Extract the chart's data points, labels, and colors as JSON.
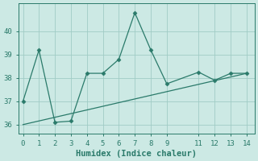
{
  "xlabel": "Humidex (Indice chaleur)",
  "x_data": [
    0,
    1,
    2,
    3,
    4,
    5,
    6,
    7,
    8,
    9,
    11,
    12,
    13,
    14
  ],
  "y_main": [
    37.0,
    39.2,
    36.1,
    36.15,
    38.2,
    38.2,
    38.8,
    40.8,
    39.2,
    37.75,
    38.25,
    37.9,
    38.2,
    38.2
  ],
  "y_trend_x": [
    0,
    14
  ],
  "y_trend_y": [
    36.0,
    38.2
  ],
  "ylim": [
    35.6,
    41.2
  ],
  "yticks": [
    36,
    37,
    38,
    39,
    40
  ],
  "xticks": [
    0,
    1,
    2,
    3,
    4,
    5,
    6,
    7,
    8,
    9,
    11,
    12,
    13,
    14
  ],
  "xlim": [
    -0.3,
    14.5
  ],
  "line_color": "#2a7a6a",
  "bg_color": "#cce9e4",
  "grid_color": "#a0ccc5",
  "marker": "D",
  "marker_size": 2.5,
  "tick_label_size": 6.5,
  "xlabel_size": 7.5
}
